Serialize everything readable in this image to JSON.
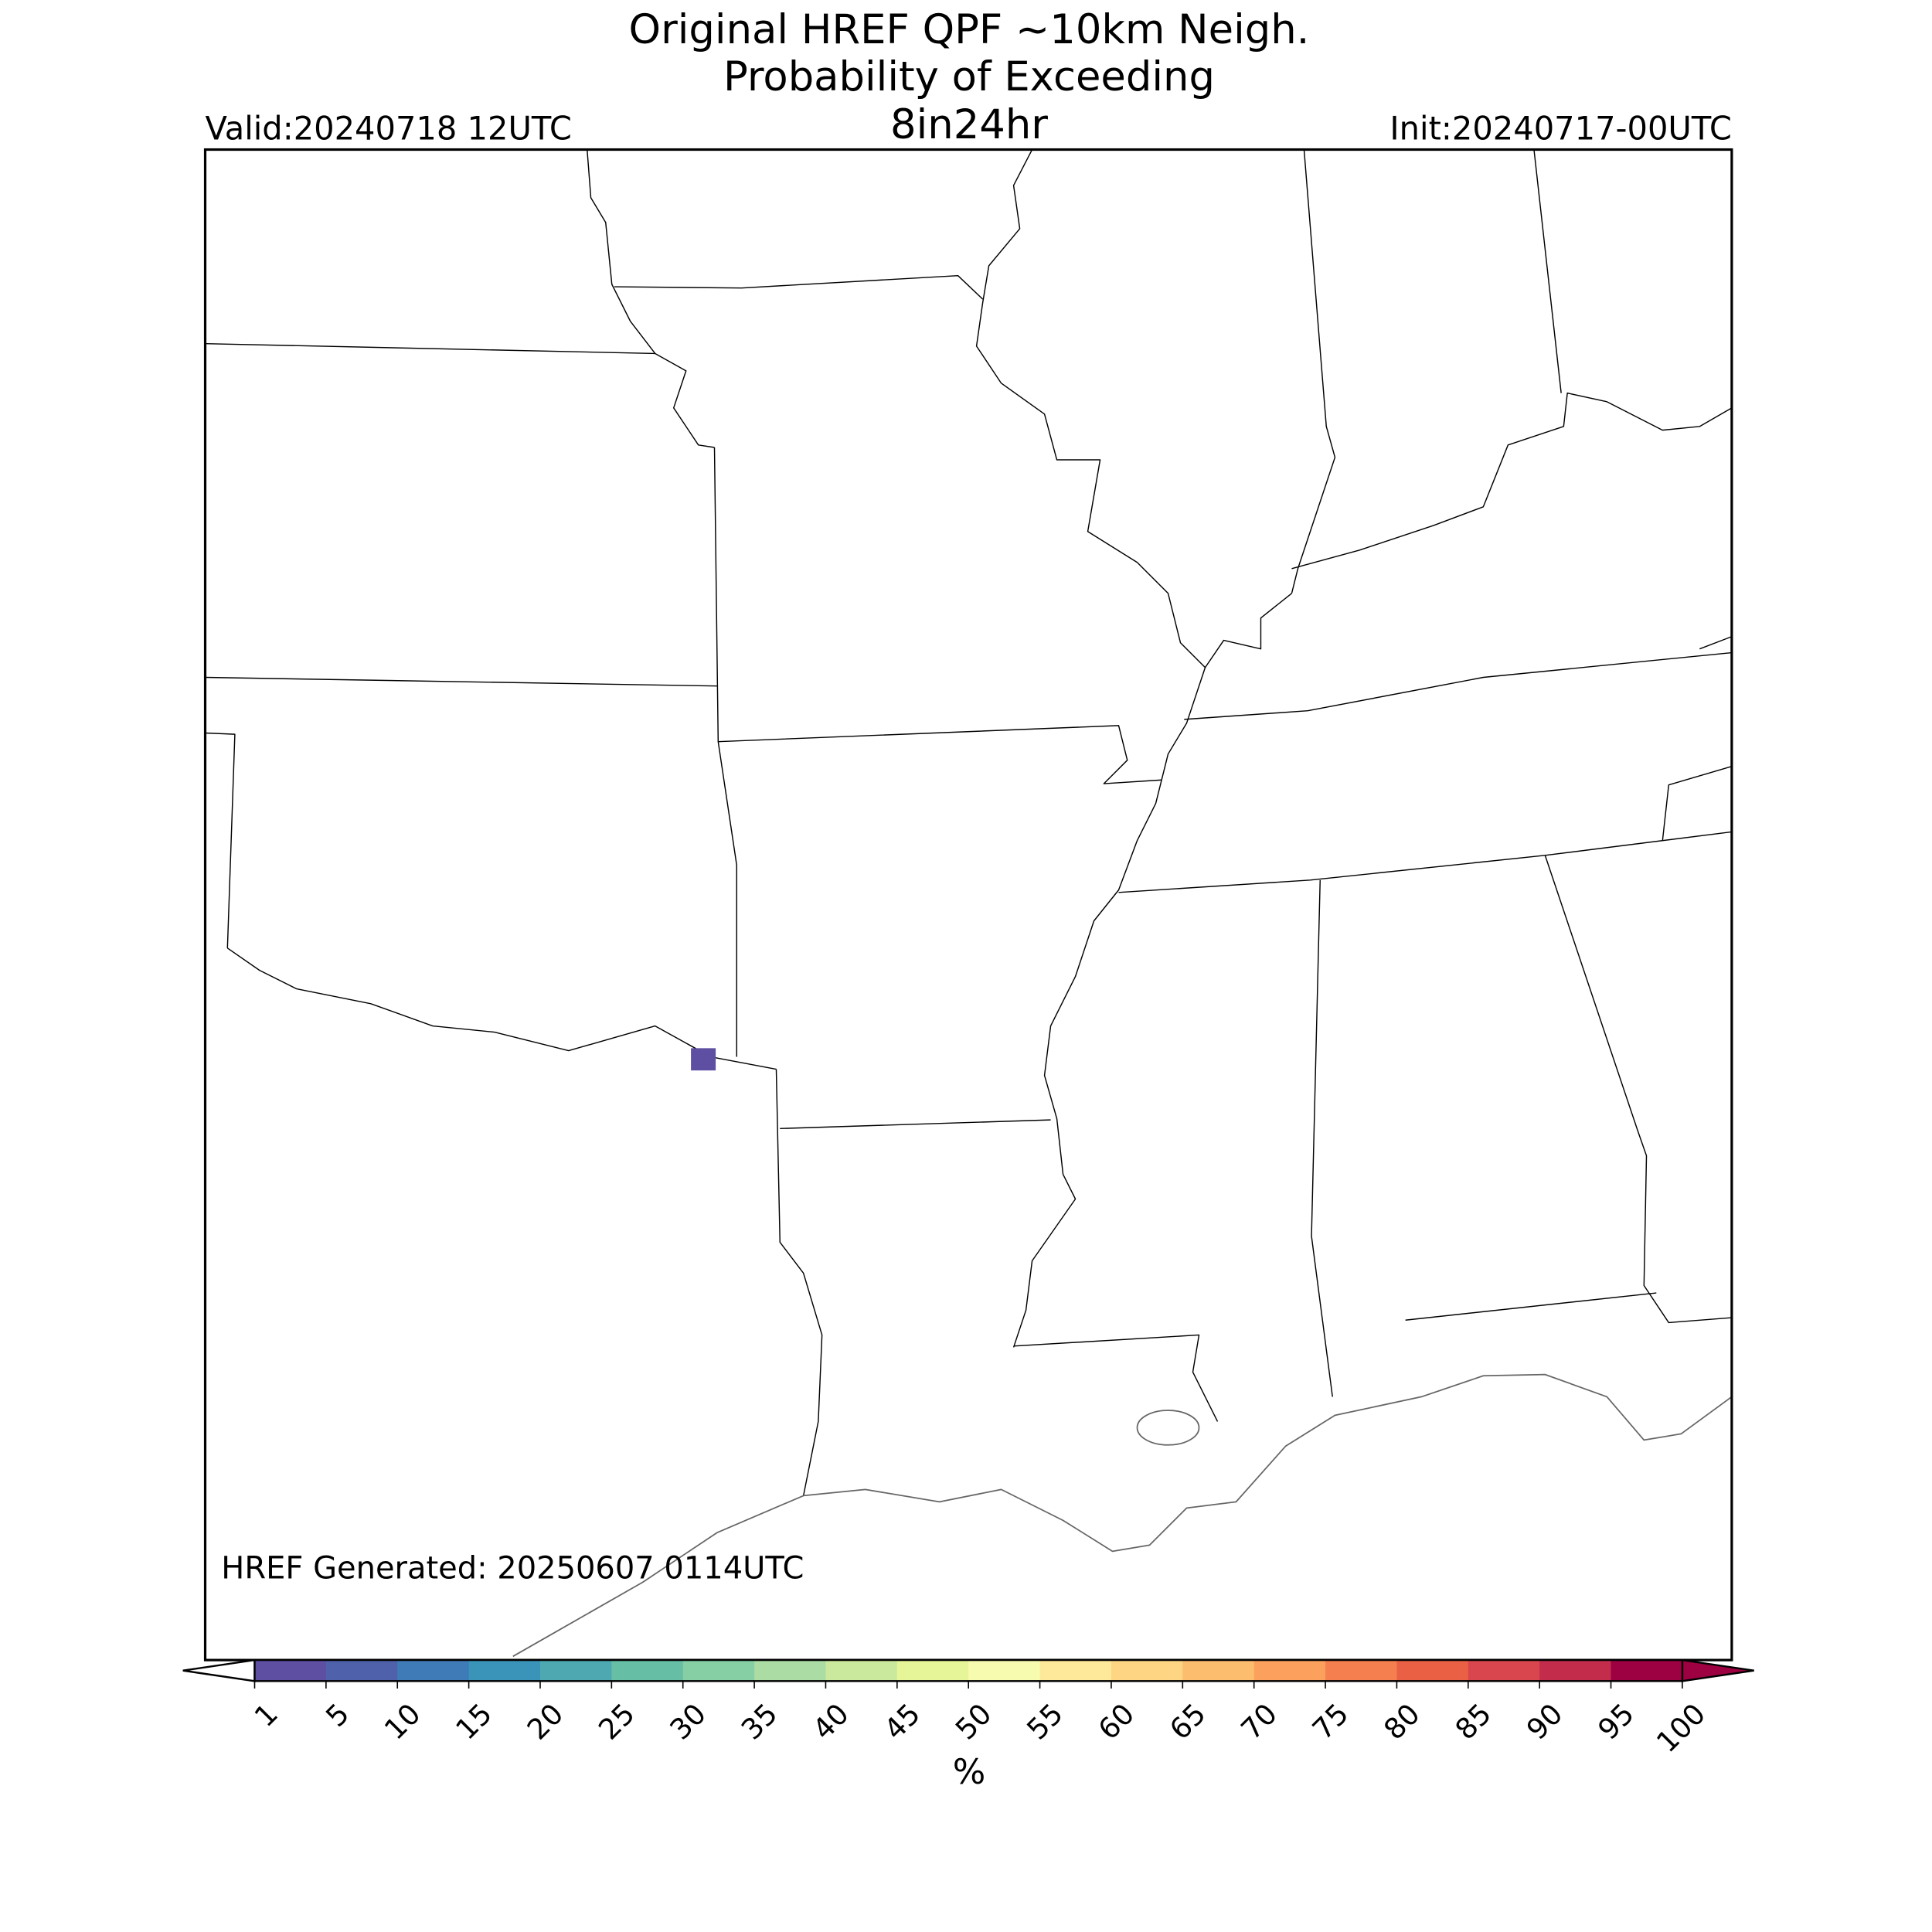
{
  "header": {
    "title_lines": [
      "Original HREF QPF ~10km Neigh.",
      "Probability of Exceeding",
      "8in24hr"
    ],
    "valid": "Valid:20240718 12UTC",
    "init": "Init:20240717-00UTC"
  },
  "map": {
    "generated": "HREF Generated: 20250607 0114UTC"
  },
  "colorbar": {
    "ticks": [
      1,
      5,
      10,
      15,
      20,
      25,
      30,
      35,
      40,
      45,
      50,
      55,
      60,
      65,
      70,
      75,
      80,
      85,
      90,
      95,
      100
    ],
    "colors": [
      "#5e4fa2",
      "#4f61aa",
      "#3f7bb6",
      "#3a93b9",
      "#4da8b1",
      "#66bea5",
      "#86cfa5",
      "#aadca4",
      "#cbe99d",
      "#e6f598",
      "#f7fbb0",
      "#fee99a",
      "#fed683",
      "#fdbd6f",
      "#fca05e",
      "#f67f4f",
      "#ea6045",
      "#da464d",
      "#c42c4b",
      "#9e0142"
    ],
    "under_color": "#ffffff",
    "over_color": "#9e0142",
    "label": "%"
  }
}
